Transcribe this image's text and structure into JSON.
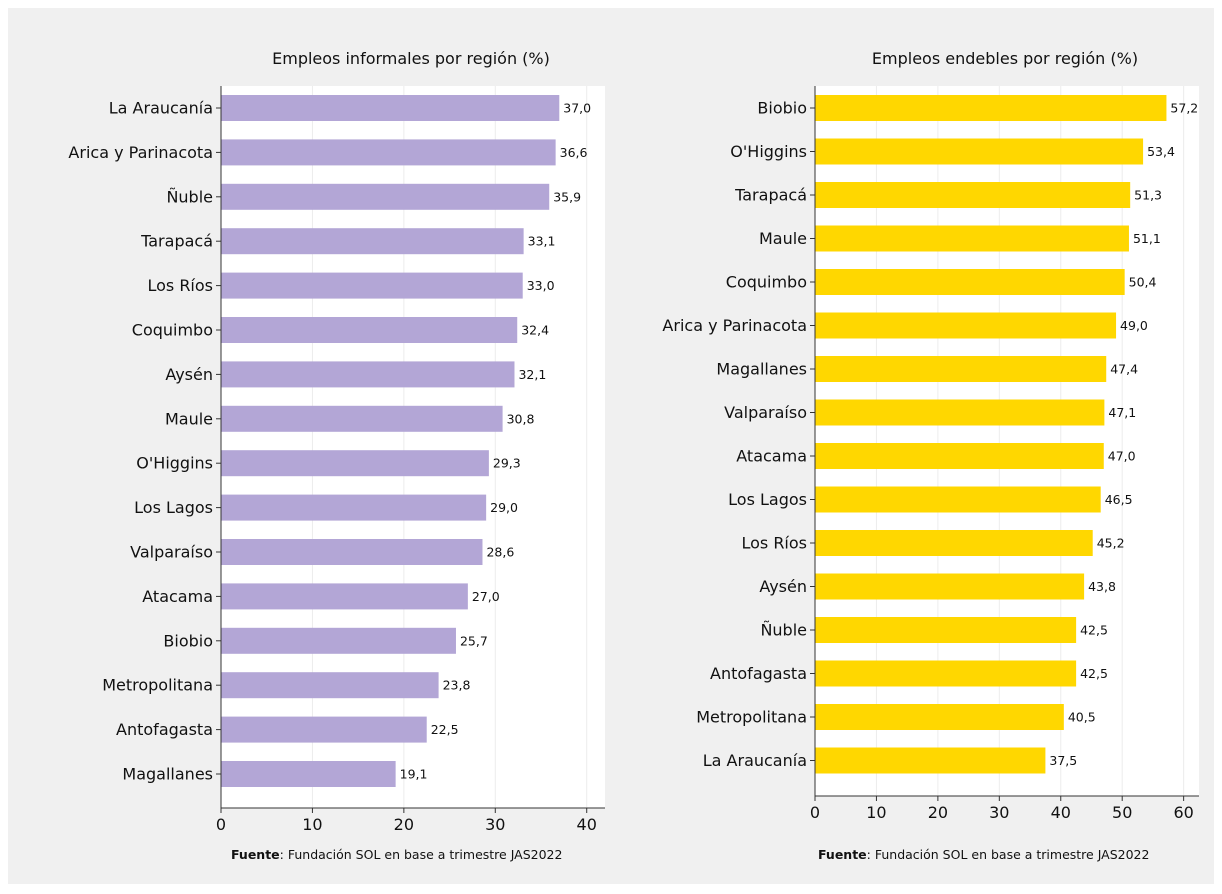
{
  "chart_data": [
    {
      "type": "bar",
      "orientation": "horizontal",
      "title": "Empleos informales por región (%)",
      "categories": [
        "La Araucanía",
        "Arica y Parinacota",
        "Ñuble",
        "Tarapacá",
        "Los Ríos",
        "Coquimbo",
        "Aysén",
        "Maule",
        "O'Higgins",
        "Los Lagos",
        "Valparaíso",
        "Atacama",
        "Biobio",
        "Metropolitana",
        "Antofagasta",
        "Magallanes"
      ],
      "values": [
        37.0,
        36.6,
        35.9,
        33.1,
        33.0,
        32.4,
        32.1,
        30.8,
        29.3,
        29.0,
        28.6,
        27.0,
        25.7,
        23.8,
        22.5,
        19.1
      ],
      "value_labels": [
        "37,0",
        "36,6",
        "35,9",
        "33,1",
        "33,0",
        "32,4",
        "32,1",
        "30,8",
        "29,3",
        "29,0",
        "28,6",
        "27,0",
        "25,7",
        "23,8",
        "22,5",
        "19,1"
      ],
      "xlim": [
        0,
        42
      ],
      "xticks": [
        0,
        10,
        20,
        30,
        40
      ],
      "grid": "vertical",
      "color": "#b3a6d6",
      "source_label": "Fuente",
      "source_text": ": Fundación SOL en base a trimestre JAS2022"
    },
    {
      "type": "bar",
      "orientation": "horizontal",
      "title": "Empleos endebles por región (%)",
      "categories": [
        "Biobio",
        "O'Higgins",
        "Tarapacá",
        "Maule",
        "Coquimbo",
        "Arica y Parinacota",
        "Magallanes",
        "Valparaíso",
        "Atacama",
        "Los Lagos",
        "Los Ríos",
        "Aysén",
        "Ñuble",
        "Antofagasta",
        "Metropolitana",
        "La Araucanía"
      ],
      "values": [
        57.2,
        53.4,
        51.3,
        51.1,
        50.4,
        49.0,
        47.4,
        47.1,
        47.0,
        46.5,
        45.2,
        43.8,
        42.5,
        42.5,
        40.5,
        37.5
      ],
      "value_labels": [
        "57,2",
        "53,4",
        "51,3",
        "51,1",
        "50,4",
        "49,0",
        "47,4",
        "47,1",
        "47,0",
        "46,5",
        "45,2",
        "43,8",
        "42,5",
        "42,5",
        "40,5",
        "37,5"
      ],
      "xlim": [
        0,
        62.5
      ],
      "xticks": [
        0,
        10,
        20,
        30,
        40,
        50,
        60
      ],
      "grid": "vertical",
      "color": "#ffd700",
      "source_label": "Fuente",
      "source_text": ": Fundación SOL en base a trimestre JAS2022"
    }
  ]
}
